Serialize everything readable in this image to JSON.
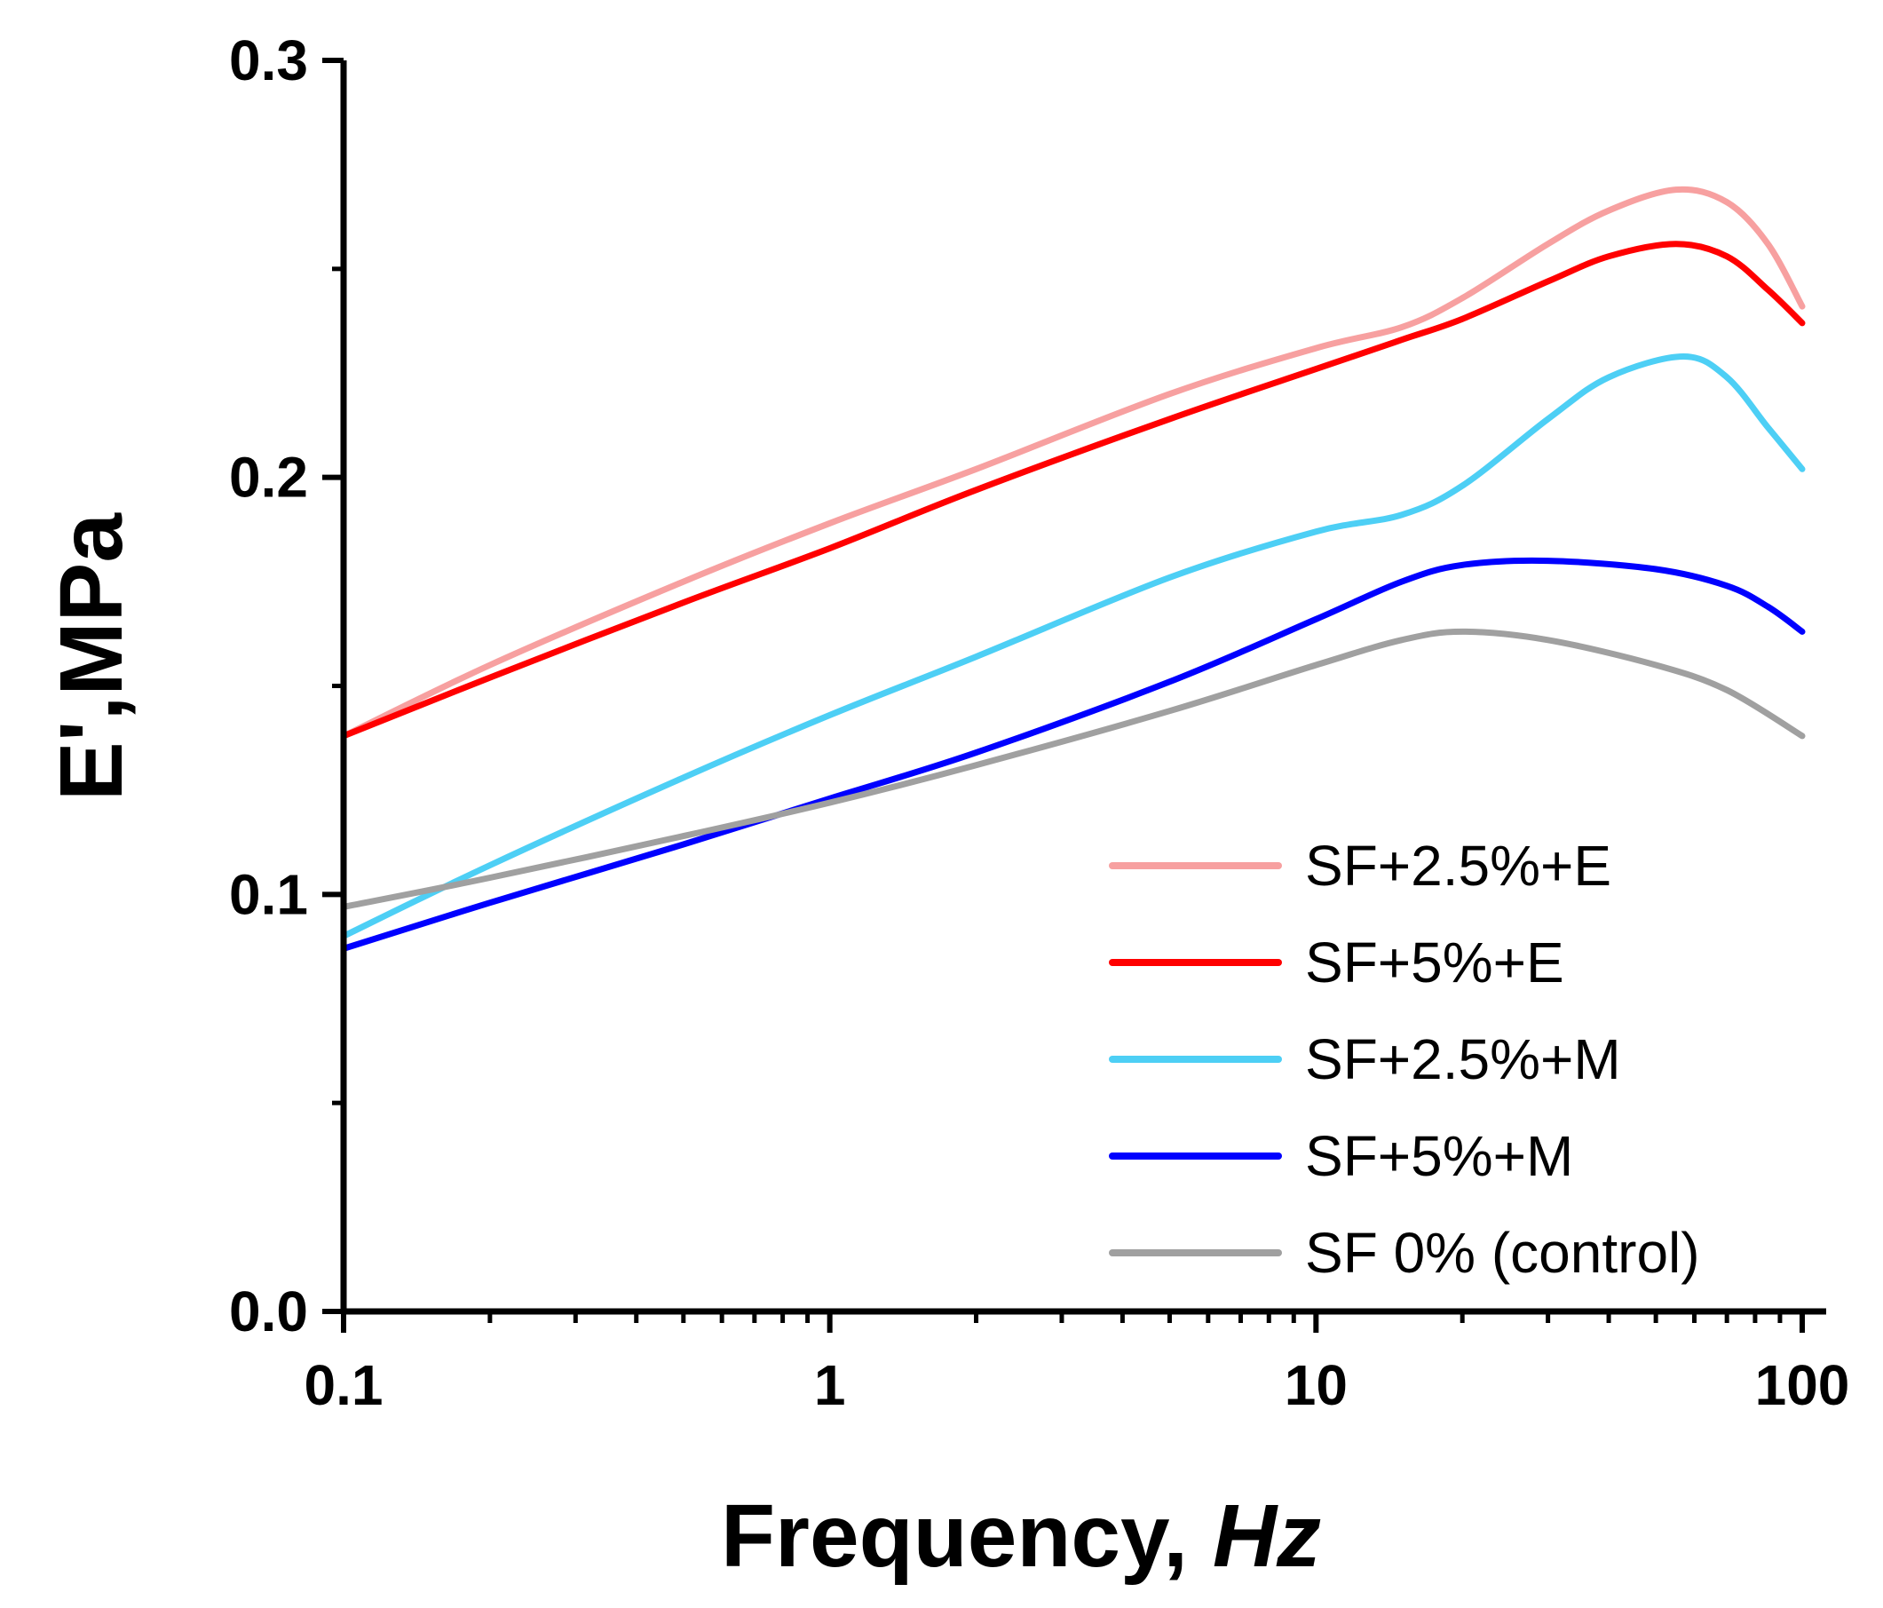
{
  "chart_data": {
    "type": "line",
    "title": "",
    "xlabel": "Frequency, ",
    "xlabel_unit": "Hz",
    "ylabel": "E',MPa",
    "xscale": "log",
    "xlim": [
      0.1,
      100
    ],
    "ylim": [
      0.0,
      0.3
    ],
    "x_ticks": [
      {
        "value": 0.1,
        "label": "0.1"
      },
      {
        "value": 1,
        "label": "1"
      },
      {
        "value": 10,
        "label": "10"
      },
      {
        "value": 100,
        "label": "100"
      }
    ],
    "y_ticks": [
      {
        "value": 0.0,
        "label": "0.0"
      },
      {
        "value": 0.1,
        "label": "0.1"
      },
      {
        "value": 0.2,
        "label": "0.2"
      },
      {
        "value": 0.3,
        "label": "0.3"
      }
    ],
    "legend_position": "bottom-right",
    "series": [
      {
        "name": "SF+2.5%+E",
        "color": "#f7a0a0",
        "x": [
          0.1,
          0.2,
          0.5,
          1,
          2,
          5,
          10,
          15,
          20,
          30,
          40,
          55,
          70,
          85,
          100
        ],
        "y": [
          0.138,
          0.155,
          0.175,
          0.189,
          0.202,
          0.22,
          0.231,
          0.236,
          0.243,
          0.256,
          0.264,
          0.269,
          0.266,
          0.256,
          0.241
        ]
      },
      {
        "name": "SF+5%+E",
        "color": "#ff0000",
        "x": [
          0.1,
          0.2,
          0.5,
          1,
          2,
          5,
          10,
          15,
          20,
          30,
          40,
          55,
          70,
          85,
          100
        ],
        "y": [
          0.138,
          0.152,
          0.17,
          0.183,
          0.197,
          0.214,
          0.226,
          0.233,
          0.238,
          0.247,
          0.253,
          0.256,
          0.253,
          0.245,
          0.237
        ]
      },
      {
        "name": "SF+2.5%+M",
        "color": "#4dcff5",
        "x": [
          0.1,
          0.2,
          0.5,
          1,
          2,
          5,
          10,
          15,
          20,
          30,
          40,
          57,
          70,
          85,
          100
        ],
        "y": [
          0.09,
          0.107,
          0.128,
          0.143,
          0.157,
          0.176,
          0.187,
          0.191,
          0.198,
          0.214,
          0.224,
          0.229,
          0.224,
          0.212,
          0.202
        ]
      },
      {
        "name": "SF+5%+M",
        "color": "#0000ff",
        "x": [
          0.1,
          0.2,
          0.5,
          1,
          2,
          5,
          10,
          15,
          20,
          30,
          50,
          70,
          85,
          100
        ],
        "y": [
          0.087,
          0.098,
          0.112,
          0.123,
          0.134,
          0.151,
          0.166,
          0.175,
          0.179,
          0.18,
          0.178,
          0.174,
          0.169,
          0.163
        ]
      },
      {
        "name": "SF 0% (control)",
        "color": "#a0a0a0",
        "x": [
          0.1,
          0.2,
          0.5,
          1,
          2,
          5,
          10,
          15,
          20,
          30,
          50,
          70,
          100
        ],
        "y": [
          0.097,
          0.104,
          0.114,
          0.122,
          0.131,
          0.144,
          0.155,
          0.161,
          0.163,
          0.161,
          0.155,
          0.149,
          0.138
        ]
      }
    ]
  }
}
